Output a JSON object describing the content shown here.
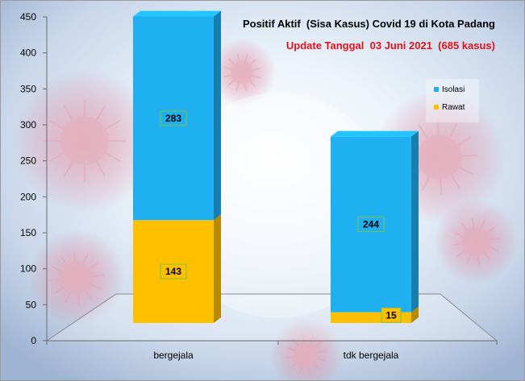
{
  "chart_data": {
    "type": "bar",
    "stacked": true,
    "three_d": true,
    "title": "Positif Aktif  (Sisa Kasus) Covid 19 di Kota Padang",
    "subtitle": "Update Tanggal  03 Juni 2021  (685 kasus)",
    "categories": [
      "bergejala",
      "tdk bergejala"
    ],
    "series": [
      {
        "name": "Rawat",
        "values": [
          143,
          15
        ],
        "color": "#FFC000"
      },
      {
        "name": "Isolasi",
        "values": [
          283,
          244
        ],
        "color": "#1FB0F2"
      }
    ],
    "ylim": [
      0,
      450
    ],
    "yticks": [
      0,
      50,
      100,
      150,
      200,
      250,
      300,
      350,
      400,
      450
    ],
    "xlabel": "",
    "ylabel": "",
    "grid": false,
    "legend_position": "right",
    "legend_order": [
      "Isolasi",
      "Rawat"
    ],
    "colors": {
      "title": "#000000",
      "subtitle": "#E0131B",
      "label_border": "#7FC241"
    }
  }
}
